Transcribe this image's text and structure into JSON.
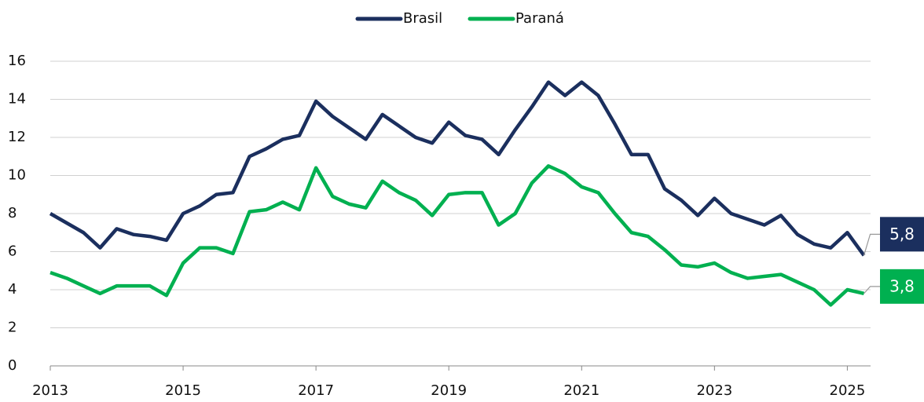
{
  "chart_data": {
    "type": "line",
    "x": [
      2013,
      2013.25,
      2013.5,
      2013.75,
      2014,
      2014.25,
      2014.5,
      2014.75,
      2015,
      2015.25,
      2015.5,
      2015.75,
      2016,
      2016.25,
      2016.5,
      2016.75,
      2017,
      2017.25,
      2017.5,
      2017.75,
      2018,
      2018.25,
      2018.5,
      2018.75,
      2019,
      2019.25,
      2019.5,
      2019.75,
      2020,
      2020.25,
      2020.5,
      2020.75,
      2021,
      2021.25,
      2021.5,
      2021.75,
      2022,
      2022.25,
      2022.5,
      2022.75,
      2023,
      2023.25,
      2023.5,
      2023.75,
      2024,
      2024.25,
      2024.5,
      2024.75,
      2025,
      2025.25
    ],
    "series": [
      {
        "name": "Brasil",
        "color": "#1b2f5e",
        "values": [
          8.0,
          7.5,
          7.0,
          6.2,
          7.2,
          6.9,
          6.8,
          6.6,
          8.0,
          8.4,
          9.0,
          9.1,
          11.0,
          11.4,
          11.9,
          12.1,
          13.9,
          13.1,
          12.5,
          11.9,
          13.2,
          12.6,
          12.0,
          11.7,
          12.8,
          12.1,
          11.9,
          11.1,
          12.4,
          13.6,
          14.9,
          14.2,
          14.9,
          14.2,
          12.7,
          11.1,
          11.1,
          9.3,
          8.7,
          7.9,
          8.8,
          8.0,
          7.7,
          7.4,
          7.9,
          6.9,
          6.4,
          6.2,
          7.0,
          5.8
        ],
        "value_labels": [
          null,
          null,
          null,
          null,
          null,
          null,
          null,
          null,
          null,
          null,
          null,
          null,
          null,
          null,
          null,
          null,
          null,
          null,
          null,
          null,
          null,
          null,
          null,
          null,
          null,
          null,
          null,
          null,
          null,
          null,
          null,
          null,
          null,
          null,
          null,
          null,
          null,
          null,
          null,
          null,
          null,
          null,
          null,
          null,
          null,
          null,
          null,
          null,
          null,
          "5,8"
        ]
      },
      {
        "name": "Paraná",
        "color": "#00b050",
        "values": [
          4.9,
          4.6,
          4.2,
          3.8,
          4.2,
          4.2,
          4.2,
          3.7,
          5.4,
          6.2,
          6.2,
          5.9,
          8.1,
          8.2,
          8.6,
          8.2,
          10.4,
          8.9,
          8.5,
          8.3,
          9.7,
          9.1,
          8.7,
          7.9,
          9.0,
          9.1,
          9.1,
          7.4,
          8.0,
          9.6,
          10.5,
          10.1,
          9.4,
          9.1,
          8.0,
          7.0,
          6.8,
          6.1,
          5.3,
          5.2,
          5.4,
          4.9,
          4.6,
          4.7,
          4.8,
          4.4,
          4.0,
          3.2,
          4.0,
          3.8
        ],
        "value_labels": [
          null,
          null,
          null,
          null,
          null,
          null,
          null,
          null,
          null,
          null,
          null,
          null,
          null,
          null,
          null,
          null,
          null,
          null,
          null,
          null,
          null,
          null,
          null,
          null,
          null,
          null,
          null,
          null,
          null,
          null,
          null,
          null,
          null,
          null,
          null,
          null,
          null,
          null,
          null,
          null,
          null,
          null,
          null,
          null,
          null,
          null,
          null,
          null,
          null,
          "3,8"
        ]
      }
    ],
    "xlim": [
      2013,
      2025.35
    ],
    "xticks": [
      2013,
      2015,
      2017,
      2019,
      2021,
      2023,
      2025
    ],
    "ylim": [
      0,
      16
    ],
    "yticks": [
      0,
      2,
      4,
      6,
      8,
      10,
      12,
      14,
      16
    ],
    "grid": true,
    "legend": "top"
  }
}
